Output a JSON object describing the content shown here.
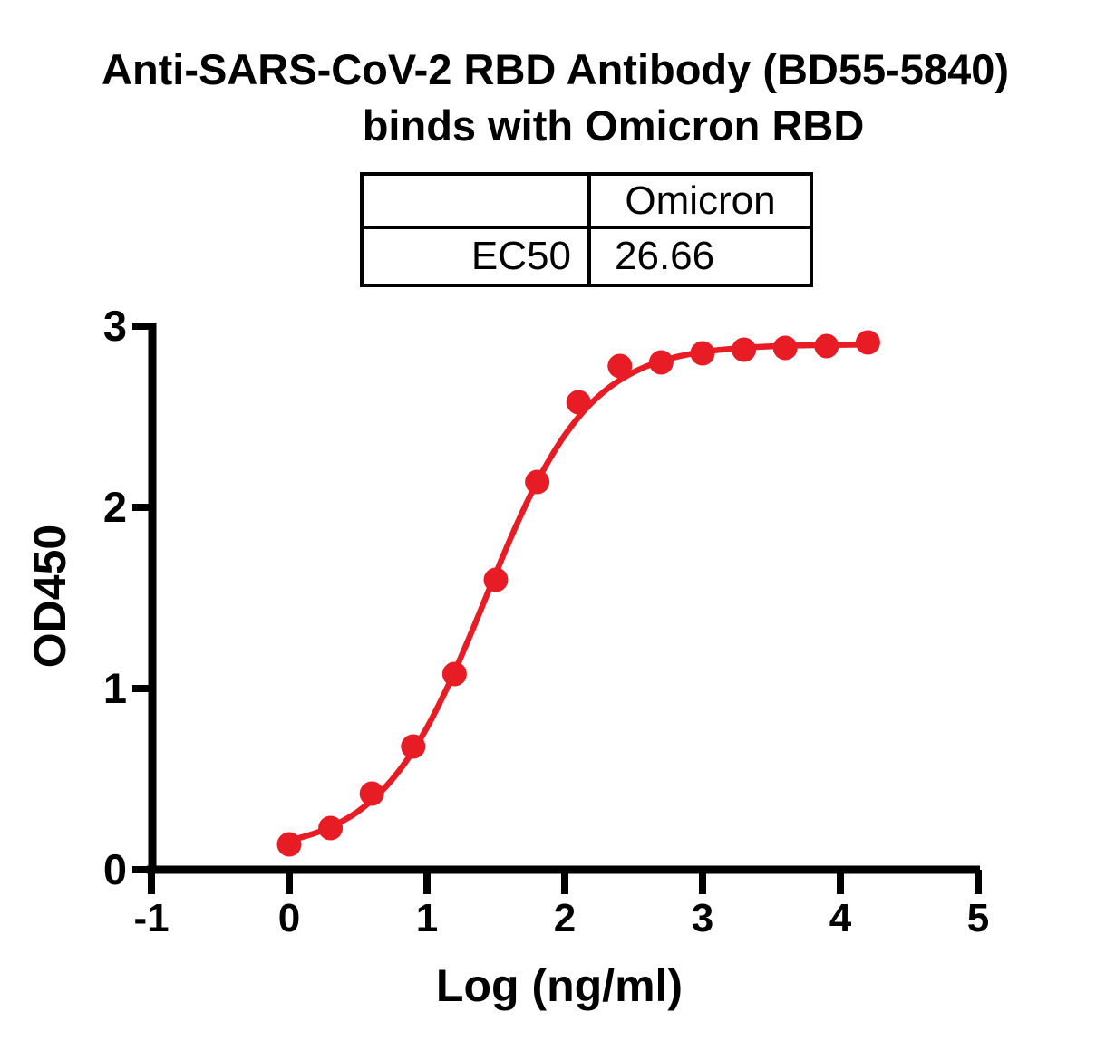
{
  "figure": {
    "title_line1": "Anti-SARS-CoV-2 RBD Antibody (BD55-5840)",
    "title_line2": "binds with Omicron RBD"
  },
  "ec50_table": {
    "corner": "",
    "col_header": "Omicron",
    "row_label": "EC50",
    "value": "26.66"
  },
  "chart_data": {
    "type": "line",
    "title": "Anti-SARS-CoV-2 RBD Antibody (BD55-5840) binds with Omicron RBD",
    "xlabel": "Log (ng/ml)",
    "ylabel": "OD450",
    "xlim": [
      -1,
      5
    ],
    "ylim": [
      0,
      3
    ],
    "x_ticks": [
      -1,
      0,
      1,
      2,
      3,
      4,
      5
    ],
    "y_ticks": [
      0,
      1,
      2,
      3
    ],
    "grid": false,
    "legend": "none",
    "series": [
      {
        "name": "Omicron",
        "color": "#e81c24",
        "marker": "circle",
        "ec50": 26.66,
        "x": [
          0.0,
          0.3,
          0.6,
          0.9,
          1.2,
          1.5,
          1.8,
          2.1,
          2.4,
          2.7,
          3.0,
          3.3,
          3.6,
          3.9,
          4.2
        ],
        "y": [
          0.14,
          0.23,
          0.42,
          0.68,
          1.08,
          1.6,
          2.14,
          2.58,
          2.78,
          2.8,
          2.85,
          2.87,
          2.88,
          2.89,
          2.91
        ],
        "fit_4pl": {
          "bottom": 0.1,
          "top": 2.9,
          "logEC50": 1.4259,
          "hill": 1.15
        }
      }
    ],
    "colors": {
      "axis": "#000000",
      "background": "#ffffff"
    }
  }
}
